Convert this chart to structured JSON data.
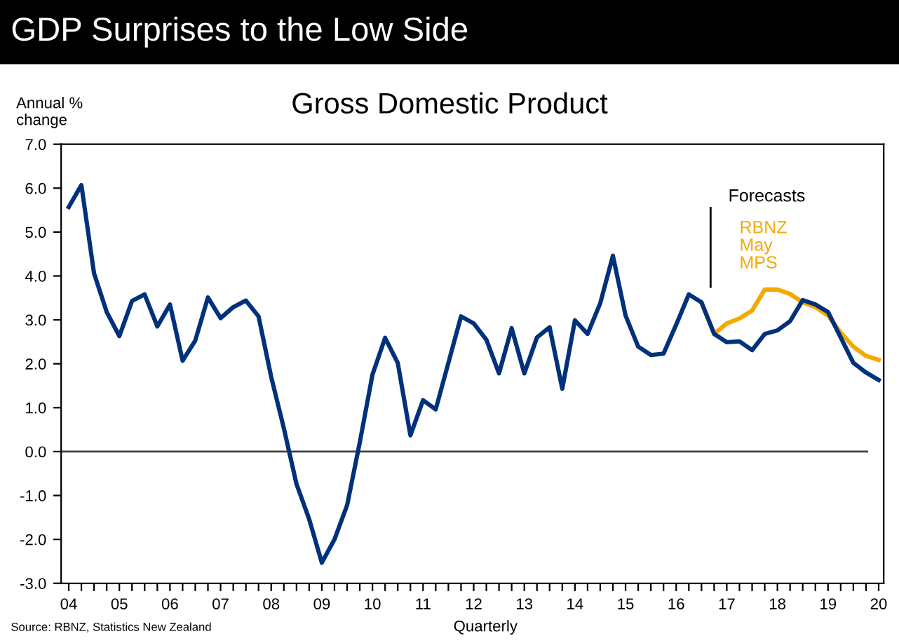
{
  "chart_data": {
    "type": "line",
    "title": "GDP Surprises to the Low Side",
    "subtitle": "Gross Domestic Product",
    "xlabel": "Quarterly",
    "ylabel": "Annual %\nchange",
    "annotations": [
      "Source: RBNZ, Statistics New Zealand"
    ],
    "series": [
      {
        "color": "#00317a",
        "x": [
          2004.0,
          2004.25,
          2004.5,
          2004.75,
          2005.0,
          2005.25,
          2005.5,
          2005.75,
          2006.0,
          2006.25,
          2006.5,
          2006.75,
          2007.0,
          2007.25,
          2007.5,
          2007.75,
          2008.0,
          2008.25,
          2008.5,
          2008.75,
          2009.0,
          2009.25,
          2009.5,
          2009.75,
          2010.0,
          2010.25,
          2010.5,
          2010.75,
          2011.0,
          2011.25,
          2011.5,
          2011.75,
          2012.0,
          2012.25,
          2012.5,
          2012.75,
          2013.0,
          2013.25,
          2013.5,
          2013.75,
          2014.0,
          2014.25,
          2014.5,
          2014.75,
          2015.0,
          2015.25,
          2015.5,
          2015.75,
          2016.0,
          2016.25,
          2016.5,
          2016.75,
          2017.0,
          2017.25,
          2017.5,
          2017.75,
          2018.0,
          2018.25,
          2018.5,
          2018.75,
          2019.0,
          2019.25,
          2019.5,
          2019.75,
          2020.0
        ],
        "values": [
          5.57,
          6.07,
          4.06,
          3.18,
          2.63,
          3.43,
          3.58,
          2.85,
          3.35,
          2.07,
          2.53,
          3.51,
          3.04,
          3.29,
          3.44,
          3.08,
          1.7,
          0.53,
          -0.74,
          -1.54,
          -2.53,
          -2.0,
          -1.22,
          0.21,
          1.75,
          2.59,
          2.02,
          0.37,
          1.17,
          0.96,
          2.02,
          3.08,
          2.92,
          2.55,
          1.78,
          2.81,
          1.78,
          2.6,
          2.83,
          1.43,
          2.99,
          2.68,
          3.38,
          4.46,
          3.1,
          2.39,
          2.2,
          2.23,
          2.89,
          3.58,
          3.4,
          2.68,
          2.49,
          2.51,
          2.31,
          2.68,
          2.76,
          2.97,
          3.45,
          3.35,
          3.18,
          2.6,
          2.02,
          1.8,
          1.63
        ]
      },
      {
        "name": "RBNZ\nMay\nMPS",
        "color": "#f5a800",
        "x": [
          2016.5,
          2016.75,
          2017.0,
          2017.25,
          2017.5,
          2017.75,
          2018.0,
          2018.25,
          2018.5,
          2018.75,
          2019.0,
          2019.25,
          2019.5,
          2019.75,
          2020.0
        ],
        "values": [
          3.4,
          2.68,
          2.92,
          3.03,
          3.21,
          3.69,
          3.69,
          3.59,
          3.4,
          3.29,
          3.1,
          2.71,
          2.39,
          2.18,
          2.09
        ]
      }
    ],
    "ref_lines": [
      {
        "axis": "y",
        "value": 0,
        "color": "#404040"
      },
      {
        "axis": "x",
        "value": 2016.68,
        "label": "Forecasts",
        "color": "#000000"
      }
    ],
    "xlim": [
      2003.85,
      2020.1
    ],
    "ylim": [
      -3,
      7
    ],
    "xticks": [
      {
        "value": 2004,
        "label": "04"
      },
      {
        "value": 2004.25,
        "label": null
      },
      {
        "value": 2004.5,
        "label": null
      },
      {
        "value": 2004.75,
        "label": null
      },
      {
        "value": 2005,
        "label": "05"
      },
      {
        "value": 2005.25,
        "label": null
      },
      {
        "value": 2005.5,
        "label": null
      },
      {
        "value": 2005.75,
        "label": null
      },
      {
        "value": 2006,
        "label": "06"
      },
      {
        "value": 2006.25,
        "label": null
      },
      {
        "value": 2006.5,
        "label": null
      },
      {
        "value": 2006.75,
        "label": null
      },
      {
        "value": 2007,
        "label": "07"
      },
      {
        "value": 2007.25,
        "label": null
      },
      {
        "value": 2007.5,
        "label": null
      },
      {
        "value": 2007.75,
        "label": null
      },
      {
        "value": 2008,
        "label": "08"
      },
      {
        "value": 2008.25,
        "label": null
      },
      {
        "value": 2008.5,
        "label": null
      },
      {
        "value": 2008.75,
        "label": null
      },
      {
        "value": 2009,
        "label": "09"
      },
      {
        "value": 2009.25,
        "label": null
      },
      {
        "value": 2009.5,
        "label": null
      },
      {
        "value": 2009.75,
        "label": null
      },
      {
        "value": 2010,
        "label": "10"
      },
      {
        "value": 2010.25,
        "label": null
      },
      {
        "value": 2010.5,
        "label": null
      },
      {
        "value": 2010.75,
        "label": null
      },
      {
        "value": 2011,
        "label": "11"
      },
      {
        "value": 2011.25,
        "label": null
      },
      {
        "value": 2011.5,
        "label": null
      },
      {
        "value": 2011.75,
        "label": null
      },
      {
        "value": 2012,
        "label": "12"
      },
      {
        "value": 2012.25,
        "label": null
      },
      {
        "value": 2012.5,
        "label": null
      },
      {
        "value": 2012.75,
        "label": null
      },
      {
        "value": 2013,
        "label": "13"
      },
      {
        "value": 2013.25,
        "label": null
      },
      {
        "value": 2013.5,
        "label": null
      },
      {
        "value": 2013.75,
        "label": null
      },
      {
        "value": 2014,
        "label": "14"
      },
      {
        "value": 2014.25,
        "label": null
      },
      {
        "value": 2014.5,
        "label": null
      },
      {
        "value": 2014.75,
        "label": null
      },
      {
        "value": 2015,
        "label": "15"
      },
      {
        "value": 2015.25,
        "label": null
      },
      {
        "value": 2015.5,
        "label": null
      },
      {
        "value": 2015.75,
        "label": null
      },
      {
        "value": 2016,
        "label": "16"
      },
      {
        "value": 2016.25,
        "label": null
      },
      {
        "value": 2016.5,
        "label": null
      },
      {
        "value": 2016.75,
        "label": null
      },
      {
        "value": 2017,
        "label": "17"
      },
      {
        "value": 2017.25,
        "label": null
      },
      {
        "value": 2017.5,
        "label": null
      },
      {
        "value": 2017.75,
        "label": null
      },
      {
        "value": 2018,
        "label": "18"
      },
      {
        "value": 2018.25,
        "label": null
      },
      {
        "value": 2018.5,
        "label": null
      },
      {
        "value": 2018.75,
        "label": null
      },
      {
        "value": 2019,
        "label": "19"
      },
      {
        "value": 2019.25,
        "label": null
      },
      {
        "value": 2019.5,
        "label": null
      },
      {
        "value": 2019.75,
        "label": null
      },
      {
        "value": 2020,
        "label": "20"
      }
    ],
    "yticks": [
      {
        "value": -3,
        "label": "-3.0"
      },
      {
        "value": -2,
        "label": "-2.0"
      },
      {
        "value": -1,
        "label": "-1.0"
      },
      {
        "value": 0,
        "label": "0.0"
      },
      {
        "value": 1,
        "label": "1.0"
      },
      {
        "value": 2,
        "label": "2.0"
      },
      {
        "value": 3,
        "label": "3.0"
      },
      {
        "value": 4,
        "label": "4.0"
      },
      {
        "value": 5,
        "label": "5.0"
      },
      {
        "value": 6,
        "label": "6.0"
      },
      {
        "value": 7,
        "label": "7.0"
      }
    ],
    "grid": false,
    "legend": false,
    "marker": "none",
    "line_style": "solid"
  }
}
